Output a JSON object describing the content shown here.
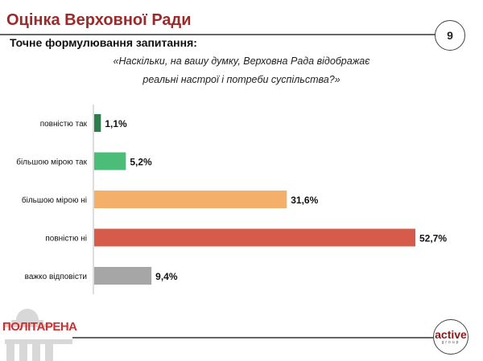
{
  "header": {
    "title": "Оцінка Верховної Ради",
    "page_number": "9"
  },
  "subtitle": "Точне формулювання запитання:",
  "question": [
    "«Наскільки, на вашу думку, Верховна Рада відображає",
    "реальні настрої і потреби суспільства?»"
  ],
  "footer": {
    "left_logo": "ПОЛІТАРЕНА",
    "right_logo_main": "active",
    "right_logo_sub": "group"
  },
  "chart_data": {
    "type": "bar",
    "orientation": "horizontal",
    "categories": [
      "повністю так",
      "більшою мірою так",
      "більшою мірою ні",
      "повністю ні",
      "важко відповісти"
    ],
    "values": [
      1.1,
      5.2,
      31.6,
      52.7,
      9.4
    ],
    "labels": [
      "1,1%",
      "5,2%",
      "31,6%",
      "52,7%",
      "9,4%"
    ],
    "colors": [
      "#2e7d4f",
      "#4cbd78",
      "#f4af6b",
      "#d65b4b",
      "#a6a6a6"
    ],
    "unit": "%",
    "xlim": [
      0,
      55
    ],
    "grid": false
  }
}
